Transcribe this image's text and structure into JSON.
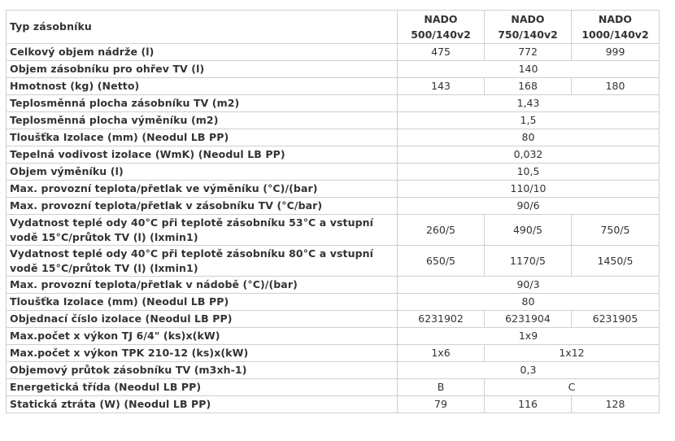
{
  "header": {
    "label": "Typ zásobníku",
    "models": [
      {
        "line1": "NADO",
        "line2": "500/140v2"
      },
      {
        "line1": "NADO",
        "line2": "750/140v2"
      },
      {
        "line1": "NADO",
        "line2": "1000/140v2"
      }
    ]
  },
  "rows": [
    {
      "label": "Celkový objem nádrže (l)",
      "cells": [
        "475",
        "772",
        "999"
      ]
    },
    {
      "label": "Objem zásobníku pro ohřev TV (l)",
      "cells": [
        "140"
      ]
    },
    {
      "label": "Hmotnost (kg) (Netto)",
      "cells": [
        "143",
        "168",
        "180"
      ]
    },
    {
      "label": "Teplosměnná plocha zásobníku TV (m2)",
      "cells": [
        "1,43"
      ]
    },
    {
      "label": "Teplosměnná plocha výměníku (m2)",
      "cells": [
        "1,5"
      ]
    },
    {
      "label": "Tloušťka Izolace (mm) (Neodul LB PP)",
      "cells": [
        "80"
      ]
    },
    {
      "label": "Tepelná vodivost izolace (WmK) (Neodul LB PP)",
      "cells": [
        "0,032"
      ]
    },
    {
      "label": "Objem výměníku (l)",
      "cells": [
        "10,5"
      ]
    },
    {
      "label": "Max. provozní teplota/přetlak ve výměníku (°C)/(bar)",
      "cells": [
        "110/10"
      ]
    },
    {
      "label": "Max. provozní teplota/přetlak v zásobníku TV (°C/bar)",
      "cells": [
        "90/6"
      ]
    },
    {
      "label": "Vydatnost teplé ody 40°C při teplotě zásobníku 53°C a vstupní vodě 15°C/průtok TV (l) (lxmin1)",
      "cells": [
        "260/5",
        "490/5",
        "750/5"
      ]
    },
    {
      "label": "Vydatnost teplé ody 40°C při teplotě zásobníku 80°C a vstupní vodě 15°C/průtok TV (l) (lxmin1)",
      "cells": [
        "650/5",
        "1170/5",
        "1450/5"
      ]
    },
    {
      "label": "Max. provozní teplota/přetlak v nádobě (°C)/(bar)",
      "cells": [
        "90/3"
      ]
    },
    {
      "label": "Tloušťka Izolace (mm) (Neodul LB PP)",
      "cells": [
        "80"
      ]
    },
    {
      "label": "Objednací číslo izolace (Neodul LB PP)",
      "cells": [
        "6231902",
        "6231904",
        "6231905"
      ]
    },
    {
      "label": "Max.počet x výkon TJ 6/4\" (ks)x(kW)",
      "cells": [
        "1x9"
      ]
    },
    {
      "label": "Max.počet x výkon TPK 210-12 (ks)x(kW)",
      "cells": [
        "1x6",
        "1x12"
      ]
    },
    {
      "label": "Objemový průtok zásobníku TV (m3xh-1)",
      "cells": [
        "0,3"
      ]
    },
    {
      "label": "Energetická třída (Neodul LB PP)",
      "cells": [
        "B",
        "C"
      ]
    },
    {
      "label": "Statická ztráta (W) (Neodul LB PP)",
      "cells": [
        "79",
        "116",
        "128"
      ]
    }
  ]
}
